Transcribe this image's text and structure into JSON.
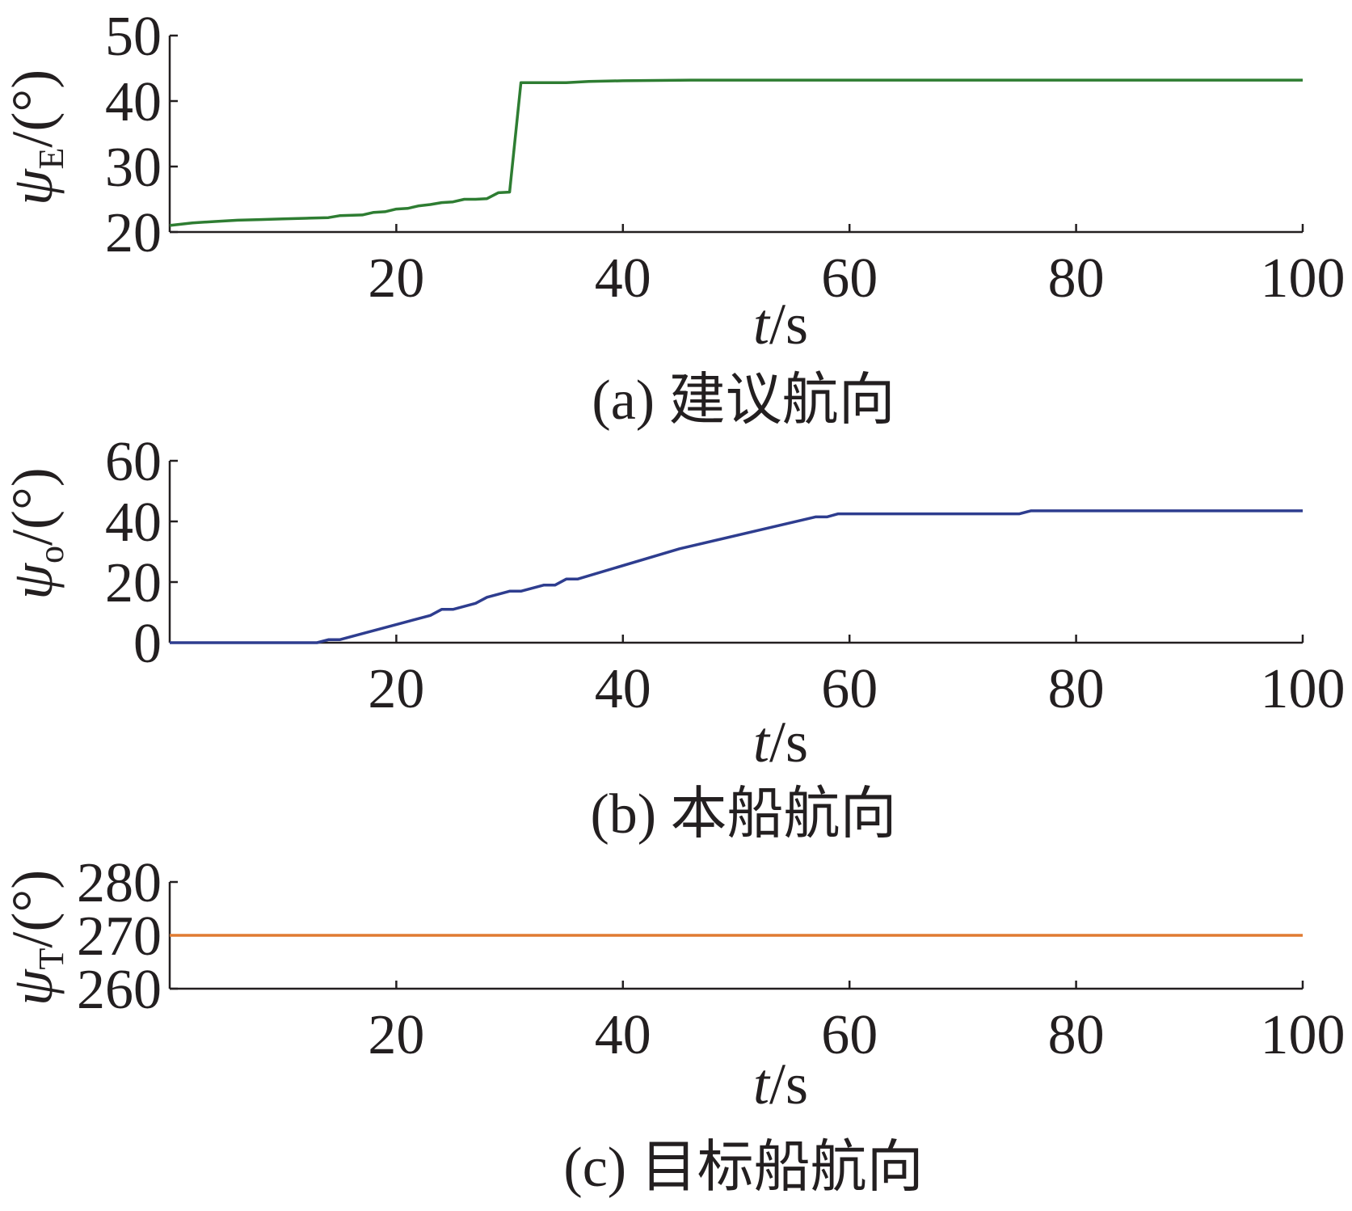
{
  "chart_data": [
    {
      "type": "line",
      "caption": "(a) 建议航向",
      "ylabel_symbol": "ψ",
      "ylabel_subscript": "E",
      "ylabel_unit": "/(°)",
      "xlabel_var": "t",
      "xlabel_unit": "/s",
      "xlim": [
        0,
        100
      ],
      "ylim": [
        20,
        50
      ],
      "xticks": [
        20,
        40,
        60,
        80,
        100
      ],
      "yticks": [
        20,
        30,
        40,
        50
      ],
      "grid": false,
      "color": "#2e7d32",
      "series": [
        {
          "x": [
            0,
            2,
            4,
            6,
            8,
            10,
            12,
            14,
            15,
            17,
            18,
            19,
            20,
            21,
            22,
            23,
            24,
            25,
            26,
            27,
            28,
            29,
            30,
            31,
            35,
            37,
            40,
            46,
            60,
            100
          ],
          "y": [
            21,
            21.4,
            21.6,
            21.8,
            21.9,
            22,
            22.1,
            22.2,
            22.5,
            22.6,
            23,
            23.1,
            23.5,
            23.6,
            24,
            24.2,
            24.5,
            24.6,
            25,
            25,
            25.1,
            26,
            26.1,
            42.8,
            42.8,
            43,
            43.1,
            43.2,
            43.2,
            43.2
          ]
        }
      ]
    },
    {
      "type": "line",
      "caption": "(b) 本船航向",
      "ylabel_symbol": "ψ",
      "ylabel_subscript": "o",
      "ylabel_unit": "/(°)",
      "xlabel_var": "t",
      "xlabel_unit": "/s",
      "xlim": [
        0,
        100
      ],
      "ylim": [
        0,
        60
      ],
      "xticks": [
        20,
        40,
        60,
        80,
        100
      ],
      "yticks": [
        0,
        20,
        40,
        60
      ],
      "grid": false,
      "color": "#2e3d8f",
      "series": [
        {
          "x": [
            0,
            13,
            14,
            15,
            17,
            19,
            21,
            23,
            24,
            25,
            27,
            28,
            30,
            31,
            33,
            34,
            35,
            36,
            45,
            57,
            58,
            59,
            75,
            76,
            100
          ],
          "y": [
            0,
            0,
            1,
            1,
            3,
            5,
            7,
            9,
            11,
            11,
            13,
            15,
            17,
            17,
            19,
            19,
            21,
            21,
            31,
            41.5,
            41.5,
            42.5,
            42.5,
            43.5,
            43.5
          ]
        }
      ]
    },
    {
      "type": "line",
      "caption": "(c) 目标船航向",
      "ylabel_symbol": "ψ",
      "ylabel_subscript": "T",
      "ylabel_unit": "/(°)",
      "xlabel_var": "t",
      "xlabel_unit": "/s",
      "xlim": [
        0,
        100
      ],
      "ylim": [
        260,
        280
      ],
      "xticks": [
        20,
        40,
        60,
        80,
        100
      ],
      "yticks": [
        260,
        270,
        280
      ],
      "grid": false,
      "color": "#e07b32",
      "series": [
        {
          "x": [
            0,
            100
          ],
          "y": [
            270,
            270
          ]
        }
      ]
    }
  ]
}
